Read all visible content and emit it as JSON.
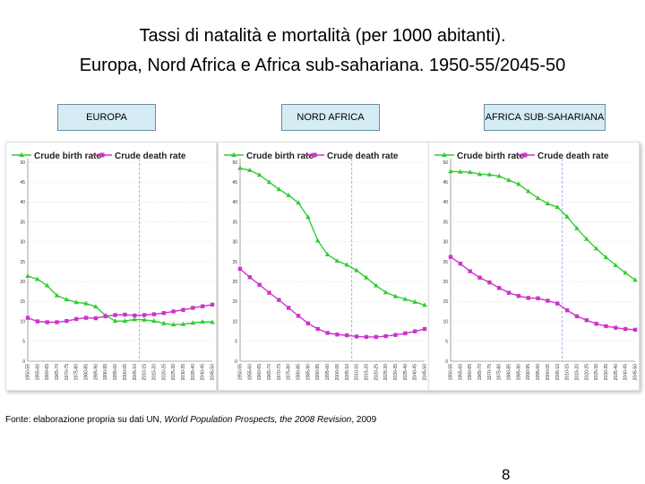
{
  "title_line1": "Tassi di natalità e mortalità (per 1000 abitanti).",
  "title_line2": "Europa, Nord Africa e Africa sub-sahariana. 1950-55/2045-50",
  "regions": [
    "EUROPA",
    "NORD AFRICA",
    "AFRICA SUB-SAHARIANA"
  ],
  "source": {
    "prefix": "Fonte: elaborazione propria su dati UN, ",
    "italic": "World Population Prospects, the 2008 Revision",
    "suffix": ", 2009"
  },
  "page_number": "8",
  "colors": {
    "birth": "#33cc33",
    "death": "#cc33cc",
    "divider": "#9999dd",
    "grid": "#bbbbbb",
    "box": "#d6ecf4"
  },
  "chart_data": [
    {
      "type": "line",
      "region": "EUROPA",
      "categories": [
        "1950-55",
        "1955-60",
        "1960-65",
        "1965-70",
        "1970-75",
        "1975-80",
        "1980-85",
        "1985-90",
        "1990-95",
        "1995-00",
        "2000-05",
        "2005-10",
        "2010-15",
        "2015-20",
        "2020-25",
        "2025-30",
        "2030-35",
        "2035-40",
        "2040-45",
        "2045-50"
      ],
      "yticks": [
        "0",
        "5",
        "10",
        "15",
        "20",
        "25",
        "30",
        "35",
        "40",
        "45",
        "50"
      ],
      "ylim": [
        0,
        50
      ],
      "projection_start_index": 12,
      "series": [
        {
          "name": "Crude birth rate",
          "marker": "triangle",
          "values": [
            21.4,
            20.6,
            19.0,
            16.5,
            15.5,
            14.8,
            14.5,
            13.7,
            11.5,
            10.1,
            10.1,
            10.5,
            10.4,
            10.1,
            9.5,
            9.2,
            9.3,
            9.6,
            9.9,
            9.8
          ]
        },
        {
          "name": "Crude death rate",
          "marker": "square",
          "values": [
            10.9,
            10.0,
            9.8,
            9.8,
            10.1,
            10.6,
            10.9,
            10.8,
            11.3,
            11.6,
            11.7,
            11.5,
            11.6,
            11.8,
            12.1,
            12.5,
            12.9,
            13.4,
            13.8,
            14.2
          ]
        }
      ]
    },
    {
      "type": "line",
      "region": "NORD AFRICA",
      "categories": [
        "1950-55",
        "1955-60",
        "1960-65",
        "1965-70",
        "1970-75",
        "1975-80",
        "1980-85",
        "1985-90",
        "1990-95",
        "1995-00",
        "2000-05",
        "2005-10",
        "2010-15",
        "2015-20",
        "2020-25",
        "2025-30",
        "2030-35",
        "2035-40",
        "2040-45",
        "2045-50"
      ],
      "yticks": [
        "0",
        "5",
        "10",
        "15",
        "20",
        "25",
        "30",
        "35",
        "40",
        "45",
        "50"
      ],
      "ylim": [
        0,
        50
      ],
      "projection_start_index": 12,
      "series": [
        {
          "name": "Crude birth rate",
          "marker": "triangle",
          "values": [
            48.5,
            48.0,
            46.8,
            45.0,
            43.2,
            41.7,
            39.8,
            36.2,
            30.3,
            26.8,
            25.2,
            24.2,
            22.8,
            21.0,
            19.0,
            17.3,
            16.3,
            15.6,
            14.9,
            14.1
          ]
        },
        {
          "name": "Crude death rate",
          "marker": "square",
          "values": [
            23.2,
            21.1,
            19.2,
            17.2,
            15.4,
            13.4,
            11.4,
            9.5,
            8.1,
            7.1,
            6.7,
            6.5,
            6.2,
            6.1,
            6.1,
            6.3,
            6.6,
            7.0,
            7.5,
            8.1
          ]
        }
      ]
    },
    {
      "type": "line",
      "region": "AFRICA SUB-SAHARIANA",
      "categories": [
        "1950-55",
        "1955-60",
        "1960-65",
        "1965-70",
        "1970-75",
        "1975-80",
        "1980-85",
        "1985-90",
        "1990-95",
        "1995-00",
        "2000-05",
        "2005-10",
        "2010-15",
        "2015-20",
        "2020-25",
        "2025-30",
        "2030-35",
        "2035-40",
        "2040-45",
        "2045-50"
      ],
      "yticks": [
        "0",
        "5",
        "10",
        "15",
        "20",
        "25",
        "30",
        "35",
        "40",
        "45",
        "50"
      ],
      "ylim": [
        0,
        50
      ],
      "projection_start_index": 12,
      "series": [
        {
          "name": "Crude birth rate",
          "marker": "triangle",
          "values": [
            47.7,
            47.6,
            47.5,
            47.0,
            46.9,
            46.5,
            45.5,
            44.5,
            42.7,
            41.0,
            39.6,
            38.7,
            36.3,
            33.4,
            30.7,
            28.3,
            26.1,
            24.1,
            22.2,
            20.4
          ]
        },
        {
          "name": "Crude death rate",
          "marker": "square",
          "values": [
            26.2,
            24.5,
            22.6,
            21.0,
            19.8,
            18.4,
            17.2,
            16.4,
            15.9,
            15.8,
            15.2,
            14.5,
            12.8,
            11.3,
            10.3,
            9.4,
            8.8,
            8.4,
            8.1,
            7.9
          ]
        }
      ]
    }
  ]
}
